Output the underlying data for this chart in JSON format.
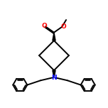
{
  "bg_color": "#ffffff",
  "bond_color": "#000000",
  "atom_colors": {
    "O": "#ff0000",
    "N": "#0000ff",
    "C": "#000000"
  },
  "bond_width": 1.4,
  "font_size": 6.5,
  "figsize": [
    1.52,
    1.52
  ],
  "dpi": 100
}
